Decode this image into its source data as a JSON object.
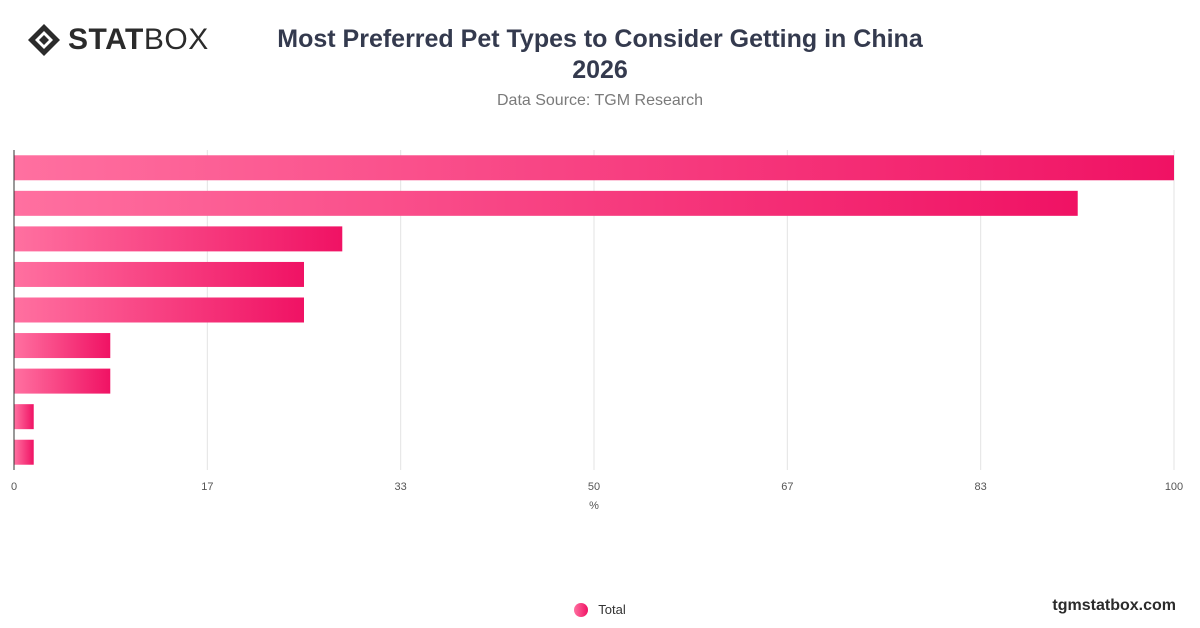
{
  "brand": {
    "logo_bold": "STAT",
    "logo_light": "BOX",
    "footer": "tgmstatbox.com"
  },
  "header": {
    "title_line1": "Most Preferred Pet Types to Consider Getting in China",
    "title_line2": "2026",
    "subtitle": "Data Source: TGM Research"
  },
  "legend": {
    "label": "Total"
  },
  "colors": {
    "bar_start": "#ff70a0",
    "bar_end": "#f01264",
    "grid": "#e3e3e3",
    "axis": "#333333"
  },
  "chart_data": {
    "type": "bar",
    "orientation": "horizontal",
    "title": "Most Preferred Pet Types to Consider Getting in China 2026",
    "subtitle": "Data Source: TGM Research",
    "categories": [
      "",
      "",
      "",
      "",
      "",
      "",
      "",
      "",
      ""
    ],
    "series": [
      {
        "name": "Total",
        "values": [
          100,
          91.7,
          28.3,
          25,
          25,
          8.3,
          8.3,
          1.7,
          1.7
        ]
      }
    ],
    "xlabel": "%",
    "xlim": [
      0,
      100
    ],
    "xticks": [
      "0",
      "17",
      "33",
      "50",
      "67",
      "83",
      "100"
    ],
    "grid": true,
    "legend_position": "bottom-center"
  }
}
